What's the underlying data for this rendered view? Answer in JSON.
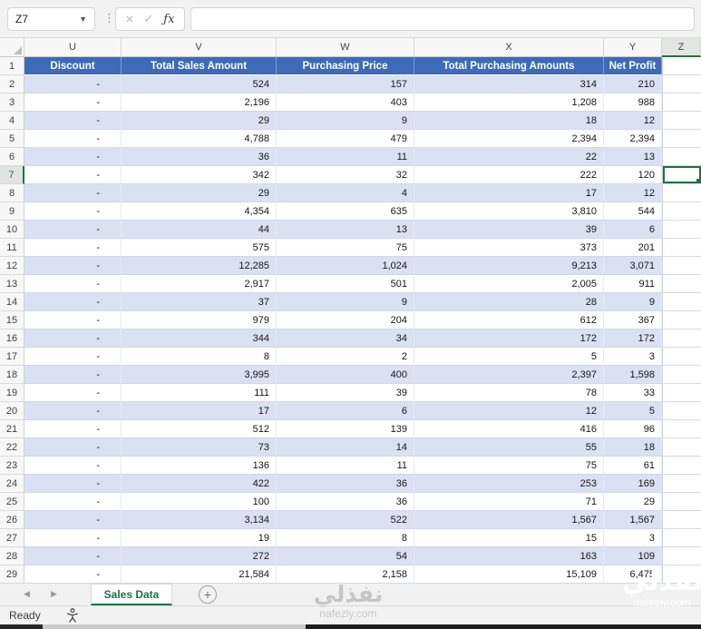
{
  "formula_bar": {
    "name_box_value": "Z7",
    "formula_value": ""
  },
  "grid": {
    "column_letters": [
      "U",
      "V",
      "W",
      "X",
      "Y",
      "Z"
    ],
    "selected_column": "Z",
    "selected_row": 7,
    "selected_cell": "Z7",
    "header_labels": [
      "Discount",
      "Total Sales Amount",
      "Purchasing Price",
      "Total Purchasing Amounts",
      "Net Profit"
    ],
    "rows": [
      [
        2,
        "-",
        "524",
        "157",
        "314",
        "210"
      ],
      [
        3,
        "-",
        "2,196",
        "403",
        "1,208",
        "988"
      ],
      [
        4,
        "-",
        "29",
        "9",
        "18",
        "12"
      ],
      [
        5,
        "-",
        "4,788",
        "479",
        "2,394",
        "2,394"
      ],
      [
        6,
        "-",
        "36",
        "11",
        "22",
        "13"
      ],
      [
        7,
        "-",
        "342",
        "32",
        "222",
        "120"
      ],
      [
        8,
        "-",
        "29",
        "4",
        "17",
        "12"
      ],
      [
        9,
        "-",
        "4,354",
        "635",
        "3,810",
        "544"
      ],
      [
        10,
        "-",
        "44",
        "13",
        "39",
        "6"
      ],
      [
        11,
        "-",
        "575",
        "75",
        "373",
        "201"
      ],
      [
        12,
        "-",
        "12,285",
        "1,024",
        "9,213",
        "3,071"
      ],
      [
        13,
        "-",
        "2,917",
        "501",
        "2,005",
        "911"
      ],
      [
        14,
        "-",
        "37",
        "9",
        "28",
        "9"
      ],
      [
        15,
        "-",
        "979",
        "204",
        "612",
        "367"
      ],
      [
        16,
        "-",
        "344",
        "34",
        "172",
        "172"
      ],
      [
        17,
        "-",
        "8",
        "2",
        "5",
        "3"
      ],
      [
        18,
        "-",
        "3,995",
        "400",
        "2,397",
        "1,598"
      ],
      [
        19,
        "-",
        "111",
        "39",
        "78",
        "33"
      ],
      [
        20,
        "-",
        "17",
        "6",
        "12",
        "5"
      ],
      [
        21,
        "-",
        "512",
        "139",
        "416",
        "96"
      ],
      [
        22,
        "-",
        "73",
        "14",
        "55",
        "18"
      ],
      [
        23,
        "-",
        "136",
        "11",
        "75",
        "61"
      ],
      [
        24,
        "-",
        "422",
        "36",
        "253",
        "169"
      ],
      [
        25,
        "-",
        "100",
        "36",
        "71",
        "29"
      ],
      [
        26,
        "-",
        "3,134",
        "522",
        "1,567",
        "1,567"
      ],
      [
        27,
        "-",
        "19",
        "8",
        "15",
        "3"
      ],
      [
        28,
        "-",
        "272",
        "54",
        "163",
        "109"
      ],
      [
        29,
        "-",
        "21,584",
        "2,158",
        "15,109",
        "6,475"
      ]
    ]
  },
  "sheet_tabs": {
    "tabs": [
      {
        "label": "Sales Data",
        "active": true
      }
    ]
  },
  "status_bar": {
    "mode": "Ready"
  },
  "watermarks": {
    "arabic": "نفذلي",
    "latin": "nafezly.com"
  },
  "colors": {
    "table_header_bg": "#3D6AB9",
    "band_row_bg": "#D9E1F2",
    "selection_green": "#1E7145"
  }
}
